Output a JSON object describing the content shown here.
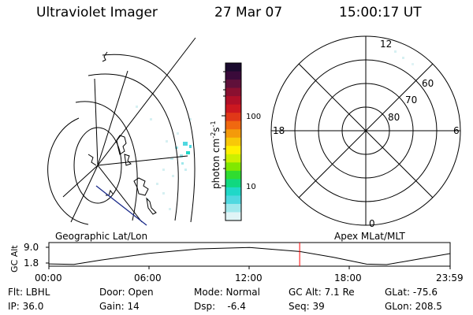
{
  "header": {
    "instrument": "Ultraviolet Imager",
    "date": "27 Mar 07",
    "time": "15:00:17 UT"
  },
  "colorbar": {
    "label": "photon cm",
    "label_exp": "-2",
    "label_unit": "s",
    "label_unit_exp": "-1",
    "scale": "log",
    "ticks": [
      "100",
      "10"
    ],
    "colors": [
      "#1a0a2e",
      "#3a0a3a",
      "#60103a",
      "#8a1030",
      "#b01028",
      "#cc1820",
      "#e03818",
      "#f06810",
      "#f49a0a",
      "#f8c808",
      "#fff000",
      "#ccf000",
      "#80e800",
      "#30dc30",
      "#10d880",
      "#20d8c8",
      "#50d8e0",
      "#a0e8ec",
      "#e0f4f6"
    ]
  },
  "panels": {
    "geo_label": "Geographic Lat/Lon",
    "apex_label": "Apex MLat/MLT"
  },
  "polar": {
    "mlt_labels": [
      "12",
      "18",
      "6",
      "0"
    ],
    "mlat_labels": [
      "60",
      "70",
      "80"
    ]
  },
  "altitude_plot": {
    "ylabel": "GC Alt",
    "yticks": [
      "9.0",
      "1.8"
    ],
    "xticks": [
      "00:00",
      "06:00",
      "12:00",
      "18:00",
      "23:59"
    ],
    "current_time_marker": "15:00",
    "marker_color": "#ff0000"
  },
  "status": {
    "filter": "Flt: LBHL",
    "door": "Door: Open",
    "mode": "Mode: Normal",
    "gc_alt": "GC Alt: 7.1 Re",
    "glat": "GLat: -75.6",
    "ip": "IP: 36.0",
    "gain": "Gain: 14",
    "dsp": "Dsp:    -6.4",
    "seq": "Seq: 39",
    "glon": "GLon: 208.5"
  }
}
